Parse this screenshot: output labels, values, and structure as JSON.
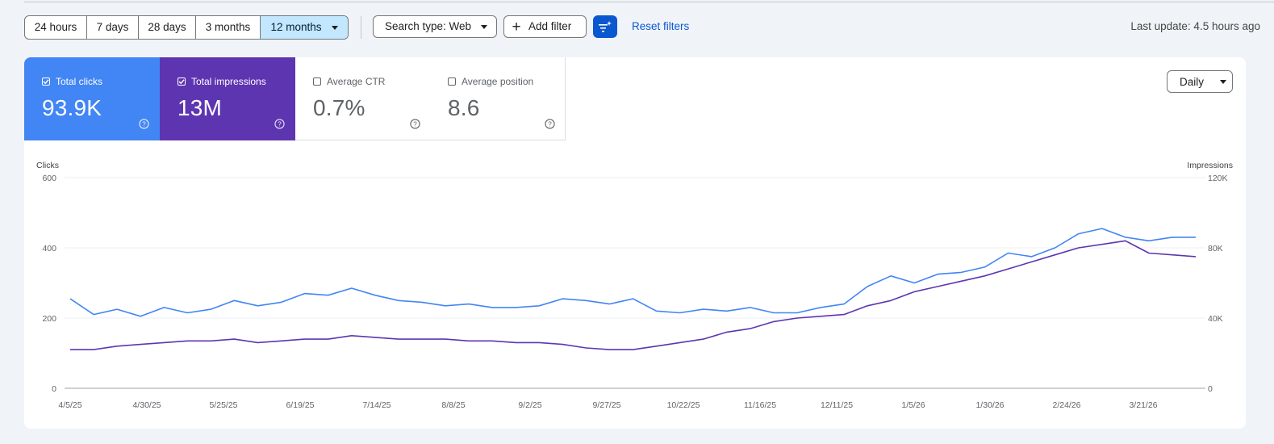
{
  "toolbar": {
    "date_ranges": [
      "24 hours",
      "7 days",
      "28 days",
      "3 months",
      "12 months"
    ],
    "active_range": "12 months",
    "search_type_label": "Search type: Web",
    "add_filter_label": "Add filter",
    "filter_icon": "filter-sparkle-icon",
    "reset_filters_label": "Reset filters",
    "last_update": "Last update: 4.5 hours ago"
  },
  "metrics": [
    {
      "label": "Total clicks",
      "value": "93.9K",
      "checked": true,
      "color": "#4285f4"
    },
    {
      "label": "Total impressions",
      "value": "13M",
      "checked": true,
      "color": "#5e35b1"
    },
    {
      "label": "Average CTR",
      "value": "0.7%",
      "checked": false
    },
    {
      "label": "Average position",
      "value": "8.6",
      "checked": false
    }
  ],
  "granularity": "Daily",
  "chart_data": {
    "type": "line",
    "left_axis_title": "Clicks",
    "right_axis_title": "Impressions",
    "left_ticks": [
      "0",
      "200",
      "400",
      "600"
    ],
    "right_ticks": [
      "0",
      "40K",
      "80K",
      "120K"
    ],
    "ylim_left": [
      0,
      600
    ],
    "ylim_right": [
      0,
      120000
    ],
    "x_tick_labels": [
      "4/5/25",
      "4/30/25",
      "5/25/25",
      "6/19/25",
      "7/14/25",
      "8/8/25",
      "9/2/25",
      "9/27/25",
      "10/22/25",
      "11/16/25",
      "12/11/25",
      "1/5/26",
      "1/30/26",
      "2/24/26",
      "3/21/26"
    ],
    "grid": true,
    "series": [
      {
        "name": "Total clicks",
        "axis": "left",
        "color": "#4285f4",
        "x_start": "4/5/25",
        "x_step_days": 7,
        "values": [
          255,
          210,
          225,
          205,
          230,
          215,
          225,
          250,
          235,
          245,
          270,
          265,
          285,
          265,
          250,
          245,
          235,
          240,
          230,
          230,
          235,
          255,
          250,
          240,
          255,
          220,
          215,
          225,
          220,
          230,
          215,
          215,
          230,
          240,
          290,
          320,
          300,
          325,
          330,
          345,
          385,
          375,
          400,
          440,
          455,
          430,
          420,
          430,
          430
        ]
      },
      {
        "name": "Total impressions",
        "axis": "right",
        "color": "#5e35b1",
        "x_start": "4/5/25",
        "x_step_days": 7,
        "values": [
          22000,
          22000,
          24000,
          25000,
          26000,
          27000,
          27000,
          28000,
          26000,
          27000,
          28000,
          28000,
          30000,
          29000,
          28000,
          28000,
          28000,
          27000,
          27000,
          26000,
          26000,
          25000,
          23000,
          22000,
          22000,
          24000,
          26000,
          28000,
          32000,
          34000,
          38000,
          40000,
          41000,
          42000,
          47000,
          50000,
          55000,
          58000,
          61000,
          64000,
          68000,
          72000,
          76000,
          80000,
          82000,
          84000,
          77000,
          76000,
          75000
        ]
      }
    ]
  }
}
